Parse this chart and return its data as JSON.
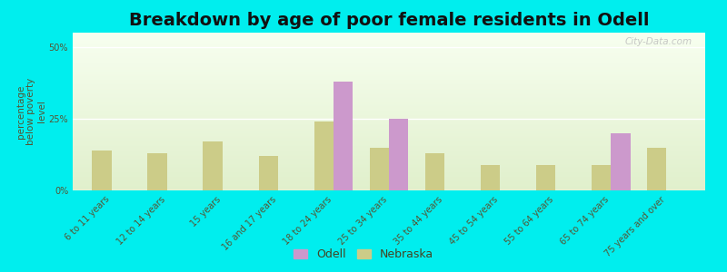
{
  "title": "Breakdown by age of poor female residents in Odell",
  "categories": [
    "6 to 11 years",
    "12 to 14 years",
    "15 years",
    "16 and 17 years",
    "18 to 24 years",
    "25 to 34 years",
    "35 to 44 years",
    "45 to 54 years",
    "55 to 64 years",
    "65 to 74 years",
    "75 years and over"
  ],
  "odell_values": [
    null,
    null,
    null,
    null,
    38,
    25,
    null,
    null,
    null,
    20,
    null
  ],
  "nebraska_values": [
    14,
    13,
    17,
    12,
    24,
    15,
    13,
    9,
    9,
    9,
    15
  ],
  "odell_color": "#cc99cc",
  "nebraska_color": "#cccc88",
  "background_color": "#00eeee",
  "ylabel": "percentage\nbelow poverty\nlevel",
  "ylim": [
    0,
    55
  ],
  "yticks": [
    0,
    25,
    50
  ],
  "ytick_labels": [
    "0%",
    "25%",
    "50%"
  ],
  "bar_width": 0.35,
  "title_fontsize": 14,
  "axis_label_fontsize": 7.5,
  "tick_fontsize": 7,
  "legend_labels": [
    "Odell",
    "Nebraska"
  ],
  "watermark": "City-Data.com"
}
